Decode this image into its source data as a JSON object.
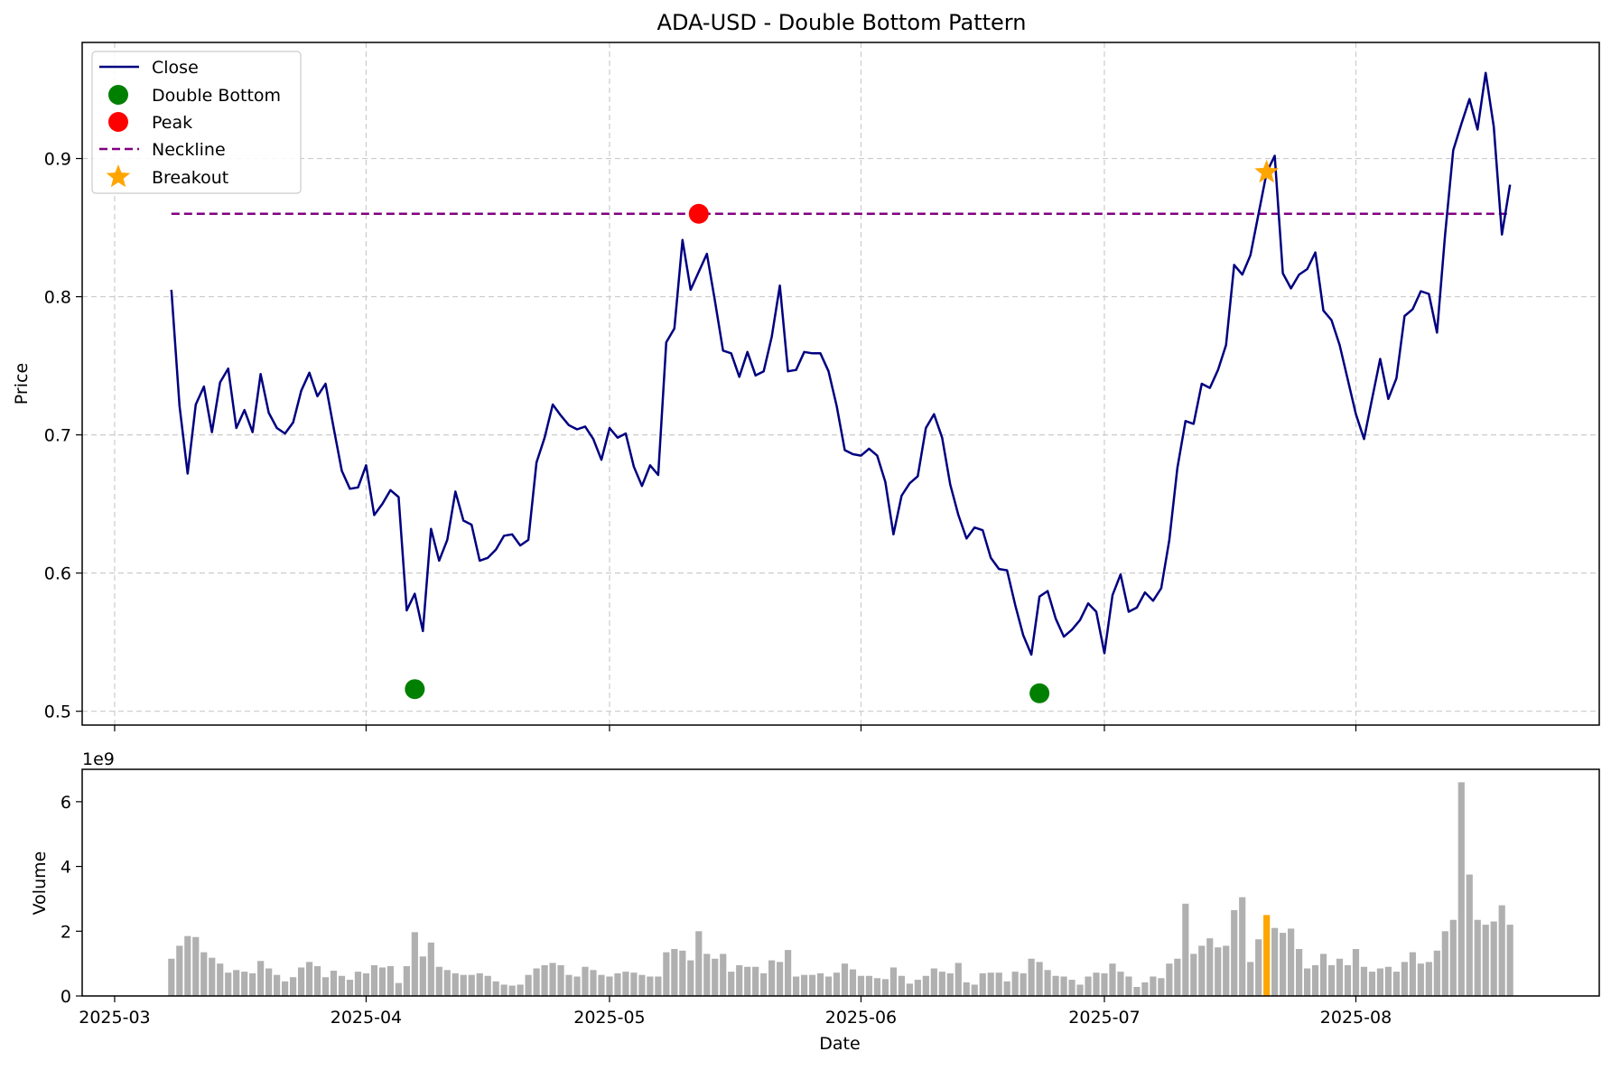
{
  "chart_data": {
    "type": "line",
    "title": "ADA-USD - Double Bottom Pattern",
    "price_panel": {
      "ylabel": "Price",
      "ylim": [
        0.49,
        0.984
      ],
      "yticks": [
        "0.5",
        "0.6",
        "0.7",
        "0.8",
        "0.9"
      ],
      "grid": true,
      "legend_position": "upper-left",
      "legend": [
        "Close",
        "Double Bottom",
        "Peak",
        "Neckline",
        "Breakout"
      ],
      "colors": {
        "close": "#000080",
        "double_bottom": "#008000",
        "peak": "#ff0000",
        "neckline": "#800080",
        "breakout": "#ffa500"
      },
      "start_date": "2025-03-08",
      "close": [
        0.805,
        0.721,
        0.672,
        0.722,
        0.735,
        0.702,
        0.738,
        0.748,
        0.705,
        0.718,
        0.702,
        0.744,
        0.716,
        0.705,
        0.701,
        0.709,
        0.732,
        0.745,
        0.728,
        0.737,
        0.705,
        0.674,
        0.661,
        0.662,
        0.678,
        0.642,
        0.65,
        0.66,
        0.655,
        0.573,
        0.585,
        0.558,
        0.632,
        0.609,
        0.624,
        0.659,
        0.638,
        0.635,
        0.609,
        0.611,
        0.617,
        0.627,
        0.628,
        0.62,
        0.624,
        0.68,
        0.698,
        0.722,
        0.714,
        0.707,
        0.704,
        0.706,
        0.697,
        0.682,
        0.705,
        0.698,
        0.701,
        0.677,
        0.663,
        0.678,
        0.671,
        0.767,
        0.777,
        0.841,
        0.805,
        0.818,
        0.831,
        0.797,
        0.761,
        0.759,
        0.742,
        0.76,
        0.743,
        0.746,
        0.771,
        0.808,
        0.746,
        0.747,
        0.76,
        0.759,
        0.759,
        0.746,
        0.721,
        0.689,
        0.686,
        0.685,
        0.69,
        0.685,
        0.666,
        0.628,
        0.656,
        0.665,
        0.67,
        0.705,
        0.715,
        0.698,
        0.664,
        0.642,
        0.625,
        0.633,
        0.631,
        0.611,
        0.603,
        0.602,
        0.577,
        0.555,
        0.541,
        0.583,
        0.587,
        0.567,
        0.554,
        0.559,
        0.566,
        0.578,
        0.572,
        0.542,
        0.584,
        0.599,
        0.572,
        0.575,
        0.586,
        0.58,
        0.589,
        0.624,
        0.676,
        0.71,
        0.708,
        0.737,
        0.734,
        0.747,
        0.765,
        0.823,
        0.816,
        0.83,
        0.86,
        0.89,
        0.902,
        0.817,
        0.806,
        0.816,
        0.82,
        0.832,
        0.79,
        0.783,
        0.765,
        0.74,
        0.715,
        0.697,
        0.726,
        0.755,
        0.726,
        0.741,
        0.786,
        0.791,
        0.804,
        0.802,
        0.774,
        0.845,
        0.906,
        0.925,
        0.943,
        0.921,
        0.962,
        0.923,
        0.845,
        0.881
      ],
      "double_bottom_points": [
        {
          "date": "2025-04-07",
          "price": 0.516
        },
        {
          "date": "2025-06-23",
          "price": 0.513
        }
      ],
      "peak_point": {
        "date": "2025-05-12",
        "price": 0.86
      },
      "neckline": {
        "price": 0.86,
        "from": "2025-03-08",
        "to": "2025-08-20"
      },
      "breakout_point": {
        "date": "2025-07-21",
        "price": 0.89
      }
    },
    "volume_panel": {
      "ylabel": "Volume",
      "xlabel": "Date",
      "scale_label": "1e9",
      "ylim": [
        0,
        7
      ],
      "yticks": [
        "0",
        "2",
        "4",
        "6"
      ],
      "bar_color": "#b0b0b0",
      "highlight_color": "#ffa500",
      "highlight_date": "2025-07-21",
      "volumes": [
        1.15,
        1.55,
        1.85,
        1.82,
        1.35,
        1.18,
        1.0,
        0.72,
        0.8,
        0.75,
        0.7,
        1.08,
        0.85,
        0.65,
        0.45,
        0.58,
        0.88,
        1.05,
        0.92,
        0.58,
        0.78,
        0.62,
        0.5,
        0.75,
        0.7,
        0.95,
        0.88,
        0.92,
        0.4,
        0.92,
        1.97,
        1.22,
        1.65,
        0.9,
        0.8,
        0.7,
        0.65,
        0.65,
        0.7,
        0.62,
        0.45,
        0.35,
        0.32,
        0.35,
        0.65,
        0.85,
        0.95,
        1.02,
        0.95,
        0.65,
        0.6,
        0.9,
        0.8,
        0.65,
        0.6,
        0.7,
        0.75,
        0.72,
        0.65,
        0.6,
        0.6,
        1.35,
        1.45,
        1.4,
        1.1,
        2.0,
        1.3,
        1.15,
        1.3,
        0.75,
        0.95,
        0.9,
        0.9,
        0.7,
        1.1,
        1.05,
        1.42,
        0.6,
        0.65,
        0.65,
        0.7,
        0.6,
        0.72,
        1.0,
        0.82,
        0.62,
        0.62,
        0.55,
        0.52,
        0.88,
        0.62,
        0.38,
        0.5,
        0.62,
        0.85,
        0.75,
        0.7,
        1.02,
        0.42,
        0.35,
        0.7,
        0.72,
        0.72,
        0.45,
        0.75,
        0.7,
        1.15,
        1.05,
        0.8,
        0.62,
        0.6,
        0.5,
        0.35,
        0.6,
        0.72,
        0.7,
        1.0,
        0.75,
        0.6,
        0.28,
        0.42,
        0.6,
        0.55,
        1.0,
        1.15,
        2.85,
        1.3,
        1.55,
        1.78,
        1.5,
        1.55,
        2.65,
        3.05,
        1.05,
        1.75,
        2.5,
        2.1,
        1.95,
        2.08,
        1.45,
        0.85,
        0.95,
        1.3,
        0.95,
        1.15,
        0.95,
        1.45,
        0.9,
        0.75,
        0.85,
        0.9,
        0.75,
        1.05,
        1.35,
        1.0,
        1.05,
        1.4,
        2.0,
        2.35,
        6.6,
        3.75,
        2.35,
        2.2,
        2.3,
        2.8,
        2.2
      ]
    },
    "x_axis": {
      "min": "2025-02-25",
      "max": "2025-08-31",
      "ticks": [
        {
          "date": "2025-03-01",
          "label": "2025-03"
        },
        {
          "date": "2025-04-01",
          "label": "2025-04"
        },
        {
          "date": "2025-05-01",
          "label": "2025-05"
        },
        {
          "date": "2025-06-01",
          "label": "2025-06"
        },
        {
          "date": "2025-07-01",
          "label": "2025-07"
        },
        {
          "date": "2025-08-01",
          "label": "2025-08"
        }
      ]
    }
  }
}
